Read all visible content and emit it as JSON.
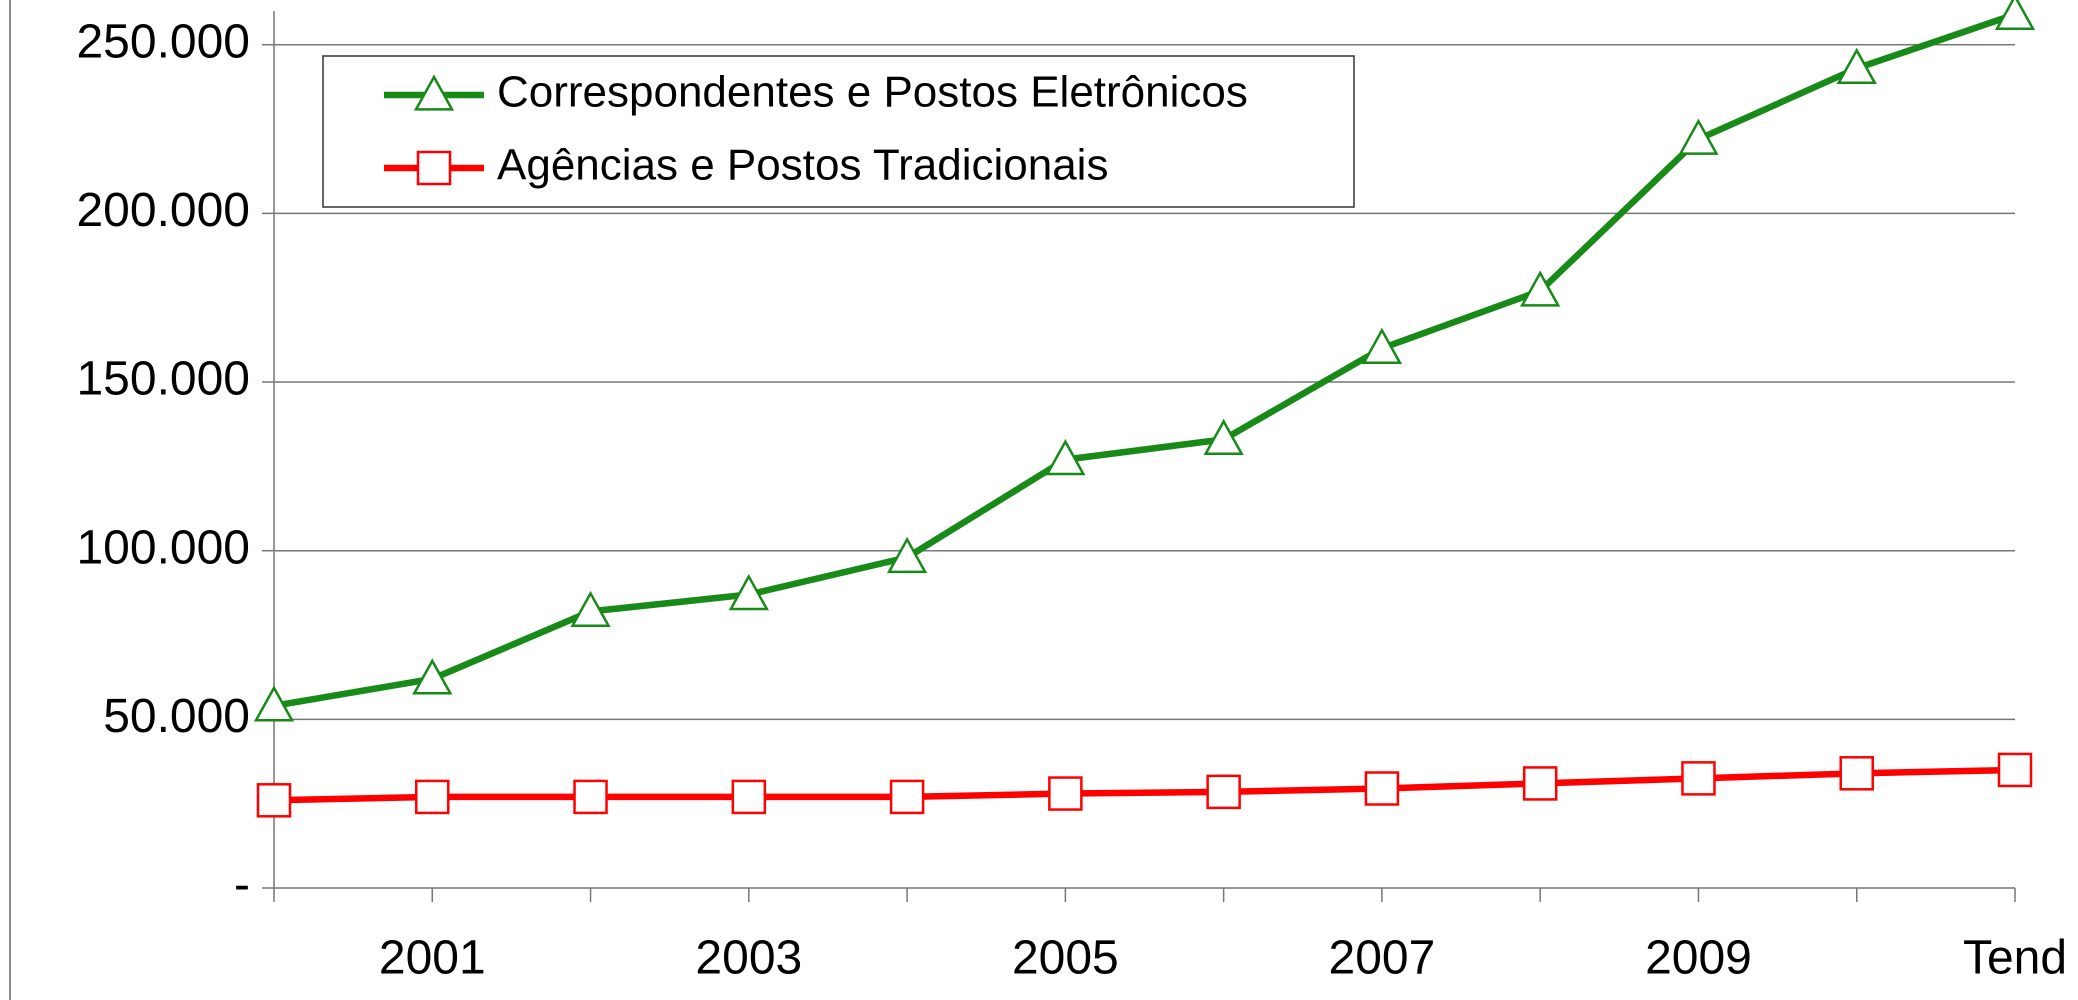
{
  "chart_data": {
    "type": "line",
    "categories": [
      null,
      "2001",
      null,
      "2003",
      null,
      "2005",
      null,
      "2007",
      null,
      "2009",
      null,
      "Tend"
    ],
    "series": [
      {
        "name": "Correspondentes e Postos Eletrônicos",
        "color": "#178a17",
        "marker": "triangle",
        "values": [
          54000,
          62000,
          82000,
          87000,
          98000,
          127000,
          133000,
          160000,
          177000,
          222000,
          243000,
          259000
        ]
      },
      {
        "name": "Agências e Postos Tradicionais",
        "color": "#ff0000",
        "marker": "square",
        "values": [
          26000,
          27000,
          27000,
          27000,
          27000,
          28000,
          28500,
          29500,
          31000,
          32500,
          34000,
          35000
        ]
      }
    ],
    "ylim": [
      0,
      260000
    ],
    "yticks": [
      {
        "value": 0,
        "label": "-"
      },
      {
        "value": 50000,
        "label": "50.000"
      },
      {
        "value": 100000,
        "label": "100.000"
      },
      {
        "value": 150000,
        "label": "150.000"
      },
      {
        "value": 200000,
        "label": "200.000"
      },
      {
        "value": 250000,
        "label": "250.000"
      }
    ],
    "grid": true,
    "legend": "top-left"
  }
}
